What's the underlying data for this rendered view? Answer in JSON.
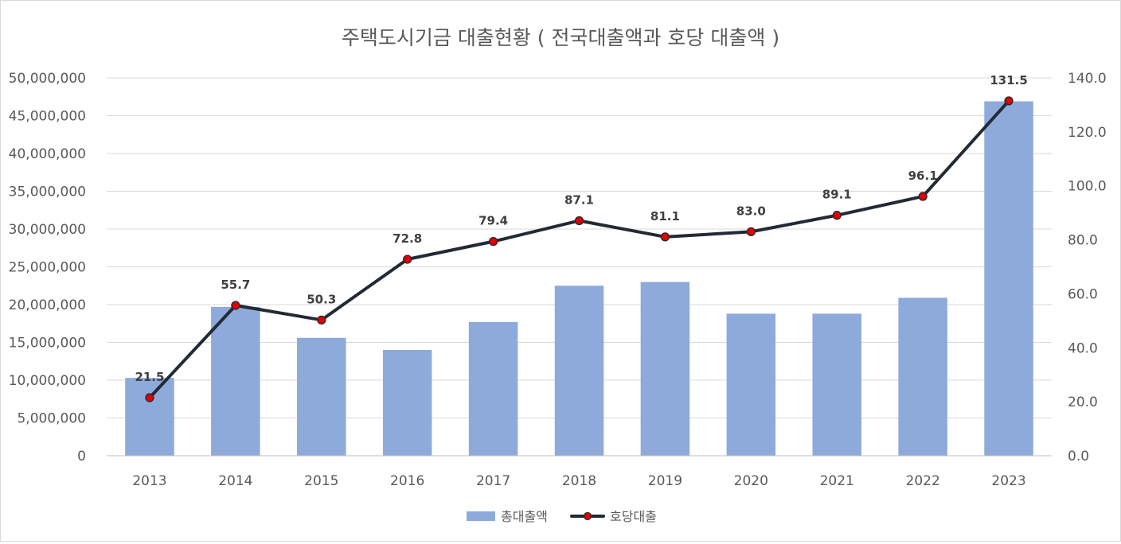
{
  "chart_data": {
    "type": "bar",
    "title": "주택도시기금 대출현황 ( 전국대출액과 호당 대출액 )",
    "categories": [
      "2013",
      "2014",
      "2015",
      "2016",
      "2017",
      "2018",
      "2019",
      "2020",
      "2021",
      "2022",
      "2023"
    ],
    "series": [
      {
        "name": "총대출액",
        "type": "bar",
        "axis": "left",
        "color": "#8eaadb",
        "values": [
          10300000,
          19700000,
          15600000,
          14000000,
          17700000,
          22500000,
          23000000,
          18800000,
          18800000,
          20900000,
          46900000
        ]
      },
      {
        "name": "호당대출",
        "type": "line",
        "axis": "right",
        "color": "#222a35",
        "marker_color": "#e00000",
        "values": [
          21.5,
          55.7,
          50.3,
          72.8,
          79.4,
          87.1,
          81.1,
          83.0,
          89.1,
          96.1,
          131.5
        ],
        "data_labels": [
          "21.5",
          "55.7",
          "50.3",
          "72.8",
          "79.4",
          "87.1",
          "81.1",
          "83.0",
          "89.1",
          "96.1",
          "131.5"
        ]
      }
    ],
    "y_left": {
      "range": [
        0,
        50000000
      ],
      "ticks": [
        0,
        5000000,
        10000000,
        15000000,
        20000000,
        25000000,
        30000000,
        35000000,
        40000000,
        45000000,
        50000000
      ],
      "tick_labels": [
        "0",
        "5,000,000",
        "10,000,000",
        "15,000,000",
        "20,000,000",
        "25,000,000",
        "30,000,000",
        "35,000,000",
        "40,000,000",
        "45,000,000",
        "50,000,000"
      ]
    },
    "y_right": {
      "range": [
        0,
        140
      ],
      "ticks": [
        0,
        20,
        40,
        60,
        80,
        100,
        120,
        140
      ],
      "tick_labels": [
        "0.0",
        "20.0",
        "40.0",
        "60.0",
        "80.0",
        "100.0",
        "120.0",
        "140.0"
      ]
    },
    "grid": true,
    "legend": "bottom"
  }
}
